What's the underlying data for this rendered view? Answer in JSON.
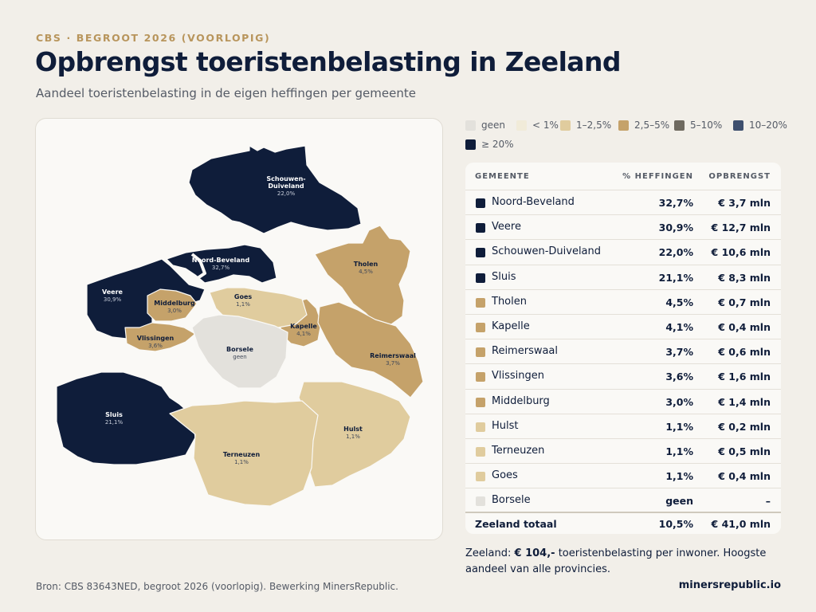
{
  "header": {
    "kicker": "CBS · BEGROOT 2026 (VOORLOPIG)",
    "title": "Opbrengst toeristenbelasting in Zeeland",
    "subtitle": "Aandeel toeristenbelasting in de eigen heffingen per gemeente"
  },
  "legend": [
    {
      "label": "geen",
      "color": "#e3e1dc"
    },
    {
      "label": "< 1%",
      "color": "#f1ebd9"
    },
    {
      "label": "1–2,5%",
      "color": "#e0cc9e"
    },
    {
      "label": "2,5–5%",
      "color": "#c5a26a"
    },
    {
      "label": "5–10%",
      "color": "#6f6a60"
    },
    {
      "label": "10–20%",
      "color": "#3e4f6e"
    },
    {
      "label": "≥ 20%",
      "color": "#0f1d3a"
    }
  ],
  "map": {
    "municipalities": [
      {
        "name": "Schouwen-Duiveland",
        "name_lines": [
          "Schouwen-",
          "Duiveland"
        ],
        "pct": "22,0%",
        "class": "≥ 20%",
        "fill": "#0f1d3a"
      },
      {
        "name": "Noord-Beveland",
        "name_lines": [
          "Noord-Beveland"
        ],
        "pct": "32,7%",
        "class": "≥ 20%",
        "fill": "#0f1d3a"
      },
      {
        "name": "Veere",
        "name_lines": [
          "Veere"
        ],
        "pct": "30,9%",
        "class": "≥ 20%",
        "fill": "#0f1d3a"
      },
      {
        "name": "Sluis",
        "name_lines": [
          "Sluis"
        ],
        "pct": "21,1%",
        "class": "≥ 20%",
        "fill": "#0f1d3a"
      },
      {
        "name": "Tholen",
        "name_lines": [
          "Tholen"
        ],
        "pct": "4,5%",
        "class": "2,5–5%",
        "fill": "#c5a26a"
      },
      {
        "name": "Kapelle",
        "name_lines": [
          "Kapelle"
        ],
        "pct": "4,1%",
        "class": "2,5–5%",
        "fill": "#c5a26a"
      },
      {
        "name": "Reimerswaal",
        "name_lines": [
          "Reimerswaal"
        ],
        "pct": "3,7%",
        "class": "2,5–5%",
        "fill": "#c5a26a"
      },
      {
        "name": "Vlissingen",
        "name_lines": [
          "Vlissingen"
        ],
        "pct": "3,6%",
        "class": "2,5–5%",
        "fill": "#c5a26a"
      },
      {
        "name": "Middelburg",
        "name_lines": [
          "Middelburg"
        ],
        "pct": "3,0%",
        "class": "2,5–5%",
        "fill": "#c5a26a"
      },
      {
        "name": "Hulst",
        "name_lines": [
          "Hulst"
        ],
        "pct": "1,1%",
        "class": "1–2,5%",
        "fill": "#e0cc9e"
      },
      {
        "name": "Terneuzen",
        "name_lines": [
          "Terneuzen"
        ],
        "pct": "1,1%",
        "class": "1–2,5%",
        "fill": "#e0cc9e"
      },
      {
        "name": "Goes",
        "name_lines": [
          "Goes"
        ],
        "pct": "1,1%",
        "class": "1–2,5%",
        "fill": "#e0cc9e"
      },
      {
        "name": "Borsele",
        "name_lines": [
          "Borsele"
        ],
        "pct": "geen",
        "class": "geen",
        "fill": "#e3e1dc"
      }
    ]
  },
  "table": {
    "headers": {
      "gemeente": "GEMEENTE",
      "pct": "% HEFFINGEN",
      "amount": "OPBRENGST"
    },
    "rows": [
      {
        "name": "Noord-Beveland",
        "pct": "32,7%",
        "amount": "€ 3,7 mln",
        "color": "#0f1d3a"
      },
      {
        "name": "Veere",
        "pct": "30,9%",
        "amount": "€ 12,7 mln",
        "color": "#0f1d3a"
      },
      {
        "name": "Schouwen-Duiveland",
        "pct": "22,0%",
        "amount": "€ 10,6 mln",
        "color": "#0f1d3a"
      },
      {
        "name": "Sluis",
        "pct": "21,1%",
        "amount": "€ 8,3 mln",
        "color": "#0f1d3a"
      },
      {
        "name": "Tholen",
        "pct": "4,5%",
        "amount": "€ 0,7 mln",
        "color": "#c5a26a"
      },
      {
        "name": "Kapelle",
        "pct": "4,1%",
        "amount": "€ 0,4 mln",
        "color": "#c5a26a"
      },
      {
        "name": "Reimerswaal",
        "pct": "3,7%",
        "amount": "€ 0,6 mln",
        "color": "#c5a26a"
      },
      {
        "name": "Vlissingen",
        "pct": "3,6%",
        "amount": "€ 1,6 mln",
        "color": "#c5a26a"
      },
      {
        "name": "Middelburg",
        "pct": "3,0%",
        "amount": "€ 1,4 mln",
        "color": "#c5a26a"
      },
      {
        "name": "Hulst",
        "pct": "1,1%",
        "amount": "€ 0,2 mln",
        "color": "#e0cc9e"
      },
      {
        "name": "Terneuzen",
        "pct": "1,1%",
        "amount": "€ 0,5 mln",
        "color": "#e0cc9e"
      },
      {
        "name": "Goes",
        "pct": "1,1%",
        "amount": "€ 0,4 mln",
        "color": "#e0cc9e"
      },
      {
        "name": "Borsele",
        "pct": "geen",
        "amount": "–",
        "color": "#e3e1dc"
      }
    ],
    "total": {
      "name": "Zeeland totaal",
      "pct": "10,5%",
      "amount": "€ 41,0 mln"
    }
  },
  "note": {
    "prefix": "Zeeland:",
    "highlight": "€ 104,-",
    "suffix": "toeristenbelasting per inwoner. Hoogste aandeel van alle provincies."
  },
  "footer": {
    "source": "Bron: CBS 83643NED, begroot 2026 (voorlopig). Bewerking MinersRepublic.",
    "brand": "minersrepublic.io"
  }
}
